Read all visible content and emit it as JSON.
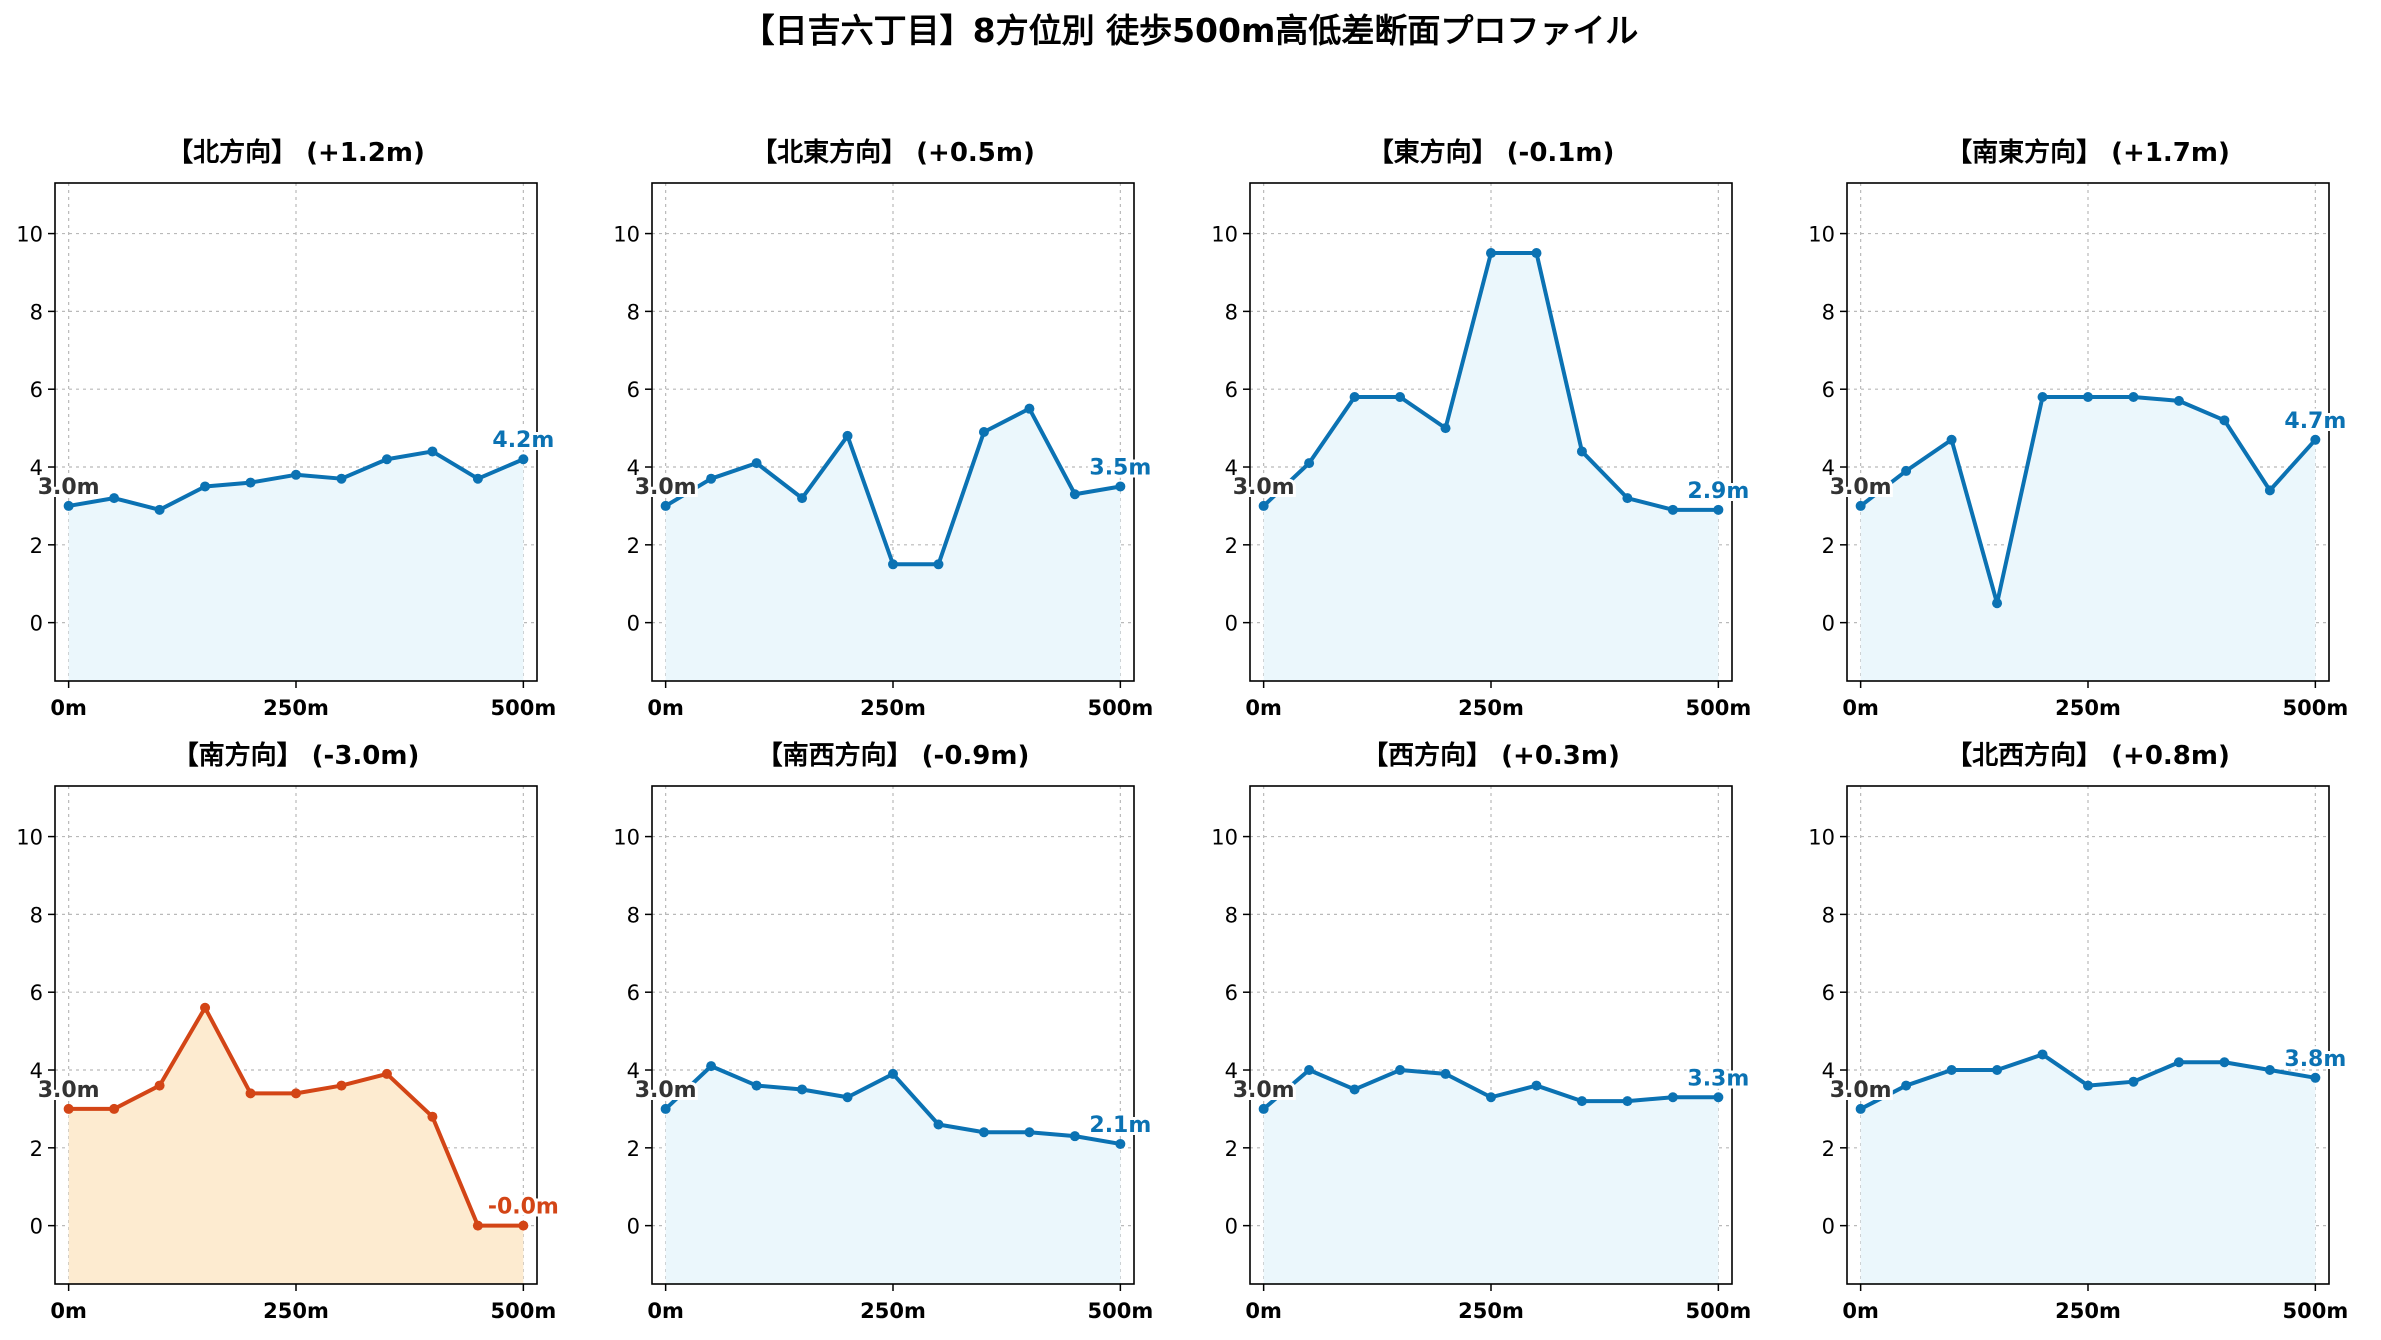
{
  "figure_title": "【日吉六丁目】8方位別 徒歩500m高低差断面プロファイル",
  "colors": {
    "line_normal": "#0b72b3",
    "fill_normal": "#ebf7fc",
    "line_highlight": "#d34516",
    "fill_highlight": "#fdebd0",
    "start_label": "#333333"
  },
  "chart_data": [
    {
      "type": "area",
      "title": "【北方向】 (+1.2m)",
      "highlight": false,
      "x": [
        0,
        50,
        100,
        150,
        200,
        250,
        300,
        350,
        400,
        450,
        500
      ],
      "y": [
        3.0,
        3.2,
        2.9,
        3.5,
        3.6,
        3.8,
        3.7,
        4.2,
        4.4,
        3.7,
        4.2
      ],
      "start_label": "3.0m",
      "end_label": "4.2m",
      "xlim": [
        -15,
        515
      ],
      "ylim": [
        -1.5,
        11.3
      ],
      "x_ticks": [
        0,
        250,
        500
      ],
      "x_tick_labels": [
        "0m",
        "250m",
        "500m"
      ],
      "y_ticks": [
        0,
        2,
        4,
        6,
        8,
        10
      ],
      "y_tick_labels": [
        "0",
        "2",
        "4",
        "6",
        "8",
        "10"
      ],
      "grid": true
    },
    {
      "type": "area",
      "title": "【北東方向】 (+0.5m)",
      "highlight": false,
      "x": [
        0,
        50,
        100,
        150,
        200,
        250,
        300,
        350,
        400,
        450,
        500
      ],
      "y": [
        3.0,
        3.7,
        4.1,
        3.2,
        4.8,
        1.5,
        1.5,
        4.9,
        5.5,
        3.3,
        3.5
      ],
      "start_label": "3.0m",
      "end_label": "3.5m",
      "xlim": [
        -15,
        515
      ],
      "ylim": [
        -1.5,
        11.3
      ],
      "x_ticks": [
        0,
        250,
        500
      ],
      "x_tick_labels": [
        "0m",
        "250m",
        "500m"
      ],
      "y_ticks": [
        0,
        2,
        4,
        6,
        8,
        10
      ],
      "y_tick_labels": [
        "0",
        "2",
        "4",
        "6",
        "8",
        "10"
      ],
      "grid": true
    },
    {
      "type": "area",
      "title": "【東方向】 (-0.1m)",
      "highlight": false,
      "x": [
        0,
        50,
        100,
        150,
        200,
        250,
        300,
        350,
        400,
        450,
        500
      ],
      "y": [
        3.0,
        4.1,
        5.8,
        5.8,
        5.0,
        9.5,
        9.5,
        4.4,
        3.2,
        2.9,
        2.9
      ],
      "start_label": "3.0m",
      "end_label": "2.9m",
      "xlim": [
        -15,
        515
      ],
      "ylim": [
        -1.5,
        11.3
      ],
      "x_ticks": [
        0,
        250,
        500
      ],
      "x_tick_labels": [
        "0m",
        "250m",
        "500m"
      ],
      "y_ticks": [
        0,
        2,
        4,
        6,
        8,
        10
      ],
      "y_tick_labels": [
        "0",
        "2",
        "4",
        "6",
        "8",
        "10"
      ],
      "grid": true
    },
    {
      "type": "area",
      "title": "【南東方向】 (+1.7m)",
      "highlight": false,
      "x": [
        0,
        50,
        100,
        150,
        200,
        250,
        300,
        350,
        400,
        450,
        500
      ],
      "y": [
        3.0,
        3.9,
        4.7,
        0.5,
        5.8,
        5.8,
        5.8,
        5.7,
        5.2,
        3.4,
        4.7
      ],
      "start_label": "3.0m",
      "end_label": "4.7m",
      "xlim": [
        -15,
        515
      ],
      "ylim": [
        -1.5,
        11.3
      ],
      "x_ticks": [
        0,
        250,
        500
      ],
      "x_tick_labels": [
        "0m",
        "250m",
        "500m"
      ],
      "y_ticks": [
        0,
        2,
        4,
        6,
        8,
        10
      ],
      "y_tick_labels": [
        "0",
        "2",
        "4",
        "6",
        "8",
        "10"
      ],
      "grid": true
    },
    {
      "type": "area",
      "title": "【南方向】 (-3.0m)",
      "highlight": true,
      "x": [
        0,
        50,
        100,
        150,
        200,
        250,
        300,
        350,
        400,
        450,
        500
      ],
      "y": [
        3.0,
        3.0,
        3.6,
        5.6,
        3.4,
        3.4,
        3.6,
        3.9,
        2.8,
        0.0,
        0.0
      ],
      "start_label": "3.0m",
      "end_label": "-0.0m",
      "xlim": [
        -15,
        515
      ],
      "ylim": [
        -1.5,
        11.3
      ],
      "x_ticks": [
        0,
        250,
        500
      ],
      "x_tick_labels": [
        "0m",
        "250m",
        "500m"
      ],
      "y_ticks": [
        0,
        2,
        4,
        6,
        8,
        10
      ],
      "y_tick_labels": [
        "0",
        "2",
        "4",
        "6",
        "8",
        "10"
      ],
      "grid": true
    },
    {
      "type": "area",
      "title": "【南西方向】 (-0.9m)",
      "highlight": false,
      "x": [
        0,
        50,
        100,
        150,
        200,
        250,
        300,
        350,
        400,
        450,
        500
      ],
      "y": [
        3.0,
        4.1,
        3.6,
        3.5,
        3.3,
        3.9,
        2.6,
        2.4,
        2.4,
        2.3,
        2.1
      ],
      "start_label": "3.0m",
      "end_label": "2.1m",
      "xlim": [
        -15,
        515
      ],
      "ylim": [
        -1.5,
        11.3
      ],
      "x_ticks": [
        0,
        250,
        500
      ],
      "x_tick_labels": [
        "0m",
        "250m",
        "500m"
      ],
      "y_ticks": [
        0,
        2,
        4,
        6,
        8,
        10
      ],
      "y_tick_labels": [
        "0",
        "2",
        "4",
        "6",
        "8",
        "10"
      ],
      "grid": true
    },
    {
      "type": "area",
      "title": "【西方向】 (+0.3m)",
      "highlight": false,
      "x": [
        0,
        50,
        100,
        150,
        200,
        250,
        300,
        350,
        400,
        450,
        500
      ],
      "y": [
        3.0,
        4.0,
        3.5,
        4.0,
        3.9,
        3.3,
        3.6,
        3.2,
        3.2,
        3.3,
        3.3
      ],
      "start_label": "3.0m",
      "end_label": "3.3m",
      "xlim": [
        -15,
        515
      ],
      "ylim": [
        -1.5,
        11.3
      ],
      "x_ticks": [
        0,
        250,
        500
      ],
      "x_tick_labels": [
        "0m",
        "250m",
        "500m"
      ],
      "y_ticks": [
        0,
        2,
        4,
        6,
        8,
        10
      ],
      "y_tick_labels": [
        "0",
        "2",
        "4",
        "6",
        "8",
        "10"
      ],
      "grid": true
    },
    {
      "type": "area",
      "title": "【北西方向】 (+0.8m)",
      "highlight": false,
      "x": [
        0,
        50,
        100,
        150,
        200,
        250,
        300,
        350,
        400,
        450,
        500
      ],
      "y": [
        3.0,
        3.6,
        4.0,
        4.0,
        4.4,
        3.6,
        3.7,
        4.2,
        4.2,
        4.0,
        3.8
      ],
      "start_label": "3.0m",
      "end_label": "3.8m",
      "xlim": [
        -15,
        515
      ],
      "ylim": [
        -1.5,
        11.3
      ],
      "x_ticks": [
        0,
        250,
        500
      ],
      "x_tick_labels": [
        "0m",
        "250m",
        "500m"
      ],
      "y_ticks": [
        0,
        2,
        4,
        6,
        8,
        10
      ],
      "y_tick_labels": [
        "0",
        "2",
        "4",
        "6",
        "8",
        "10"
      ],
      "grid": true
    }
  ]
}
